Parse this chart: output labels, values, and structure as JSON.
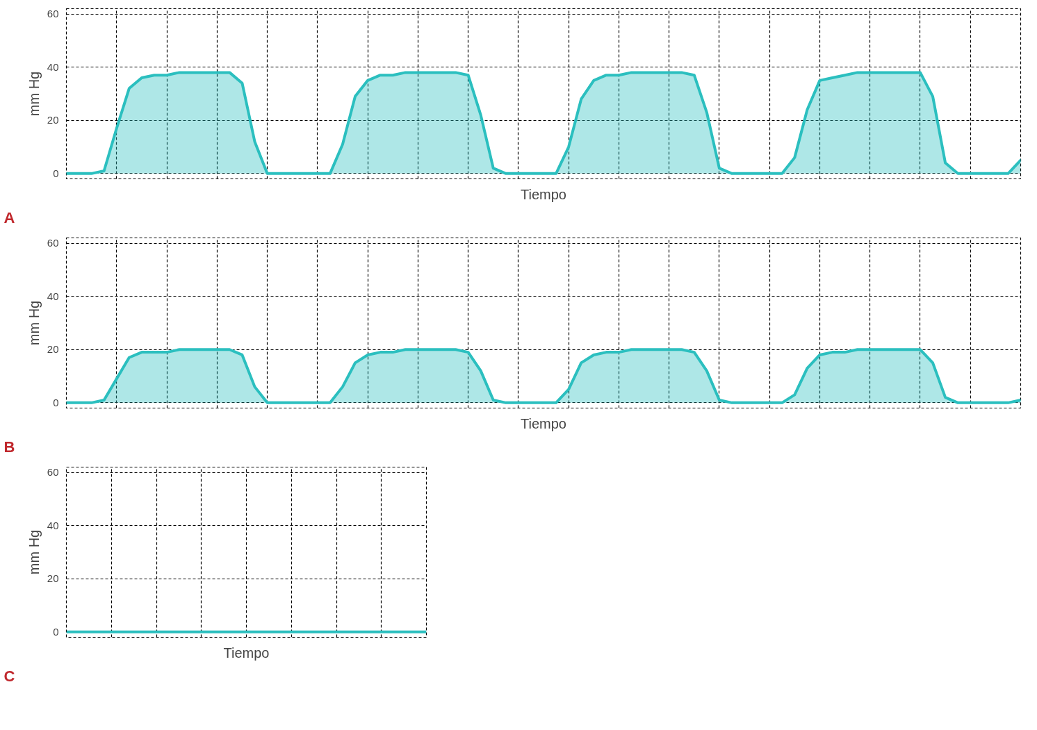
{
  "chart_data": [
    {
      "type": "area",
      "xlabel": "Tiempo",
      "ylabel": "mm Hg",
      "annotations": [
        "A"
      ],
      "ylim": [
        -2,
        62
      ],
      "yticks": [
        0,
        20,
        40,
        60
      ],
      "grid": true,
      "tick_labels": "y",
      "categories": [
        null,
        null,
        null,
        null,
        null,
        null,
        null,
        null,
        null,
        null,
        null,
        null,
        null,
        null,
        null,
        null,
        null,
        null,
        null,
        null,
        null,
        null,
        null,
        null,
        null,
        null,
        null,
        null,
        null,
        null,
        null,
        null,
        null,
        null,
        null,
        null,
        null,
        null,
        null,
        null,
        null,
        null,
        null,
        null,
        null,
        null,
        null,
        null,
        null,
        null,
        null,
        null,
        null,
        null,
        null,
        null,
        null,
        null,
        null,
        null,
        null,
        null,
        null,
        null,
        null,
        null,
        null,
        null,
        null,
        null,
        null,
        null,
        null,
        null,
        null,
        null,
        null
      ],
      "series": [
        {
          "color": "#2bbfbf",
          "values": [
            0,
            0,
            0,
            1,
            17,
            32,
            36,
            37,
            37,
            38,
            38,
            38,
            38,
            38,
            34,
            12,
            0,
            0,
            0,
            0,
            0,
            0,
            11,
            29,
            35,
            37,
            37,
            38,
            38,
            38,
            38,
            38,
            37,
            22,
            2,
            0,
            0,
            0,
            0,
            0,
            10,
            28,
            35,
            37,
            37,
            38,
            38,
            38,
            38,
            38,
            37,
            23,
            2,
            0,
            0,
            0,
            0,
            0,
            6,
            24,
            35,
            36,
            37,
            38,
            38,
            38,
            38,
            38,
            38,
            29,
            4,
            0,
            0,
            0,
            0,
            0,
            5
          ]
        }
      ]
    },
    {
      "type": "area",
      "xlabel": "Tiempo",
      "ylabel": "mm Hg",
      "annotations": [
        "B"
      ],
      "ylim": [
        -2,
        62
      ],
      "yticks": [
        0,
        20,
        40,
        60
      ],
      "grid": true,
      "tick_labels": "y",
      "categories": [
        null,
        null,
        null,
        null,
        null,
        null,
        null,
        null,
        null,
        null,
        null,
        null,
        null,
        null,
        null,
        null,
        null,
        null,
        null,
        null,
        null,
        null,
        null,
        null,
        null,
        null,
        null,
        null,
        null,
        null,
        null,
        null,
        null,
        null,
        null,
        null,
        null,
        null,
        null,
        null,
        null,
        null,
        null,
        null,
        null,
        null,
        null,
        null,
        null,
        null,
        null,
        null,
        null,
        null,
        null,
        null,
        null,
        null,
        null,
        null,
        null,
        null,
        null,
        null,
        null,
        null,
        null,
        null,
        null,
        null,
        null,
        null,
        null,
        null,
        null,
        null,
        null
      ],
      "series": [
        {
          "color": "#2bbfbf",
          "values": [
            0,
            0,
            0,
            1,
            9,
            17,
            19,
            19,
            19,
            20,
            20,
            20,
            20,
            20,
            18,
            6,
            0,
            0,
            0,
            0,
            0,
            0,
            6,
            15,
            18,
            19,
            19,
            20,
            20,
            20,
            20,
            20,
            19,
            12,
            1,
            0,
            0,
            0,
            0,
            0,
            5,
            15,
            18,
            19,
            19,
            20,
            20,
            20,
            20,
            20,
            19,
            12,
            1,
            0,
            0,
            0,
            0,
            0,
            3,
            13,
            18,
            19,
            19,
            20,
            20,
            20,
            20,
            20,
            20,
            15,
            2,
            0,
            0,
            0,
            0,
            0,
            1
          ]
        }
      ]
    },
    {
      "type": "line",
      "xlabel": "Tiempo",
      "ylabel": "mm Hg",
      "annotations": [
        "C"
      ],
      "ylim": [
        -2,
        62
      ],
      "yticks": [
        0,
        20,
        40,
        60
      ],
      "grid": true,
      "tick_labels": "y",
      "categories": [
        null,
        null,
        null,
        null,
        null,
        null,
        null,
        null,
        null,
        null,
        null,
        null,
        null,
        null,
        null,
        null,
        null,
        null,
        null,
        null,
        null,
        null,
        null,
        null,
        null,
        null,
        null,
        null,
        null,
        null,
        null,
        null,
        null
      ],
      "series": [
        {
          "color": "#2bbfbf",
          "values": [
            0,
            0,
            0,
            0,
            0,
            0,
            0,
            0,
            0,
            0,
            0,
            0,
            0,
            0,
            0,
            0,
            0,
            0,
            0,
            0,
            0,
            0,
            0,
            0,
            0,
            0,
            0,
            0,
            0,
            0,
            0,
            0,
            0
          ]
        }
      ]
    }
  ]
}
